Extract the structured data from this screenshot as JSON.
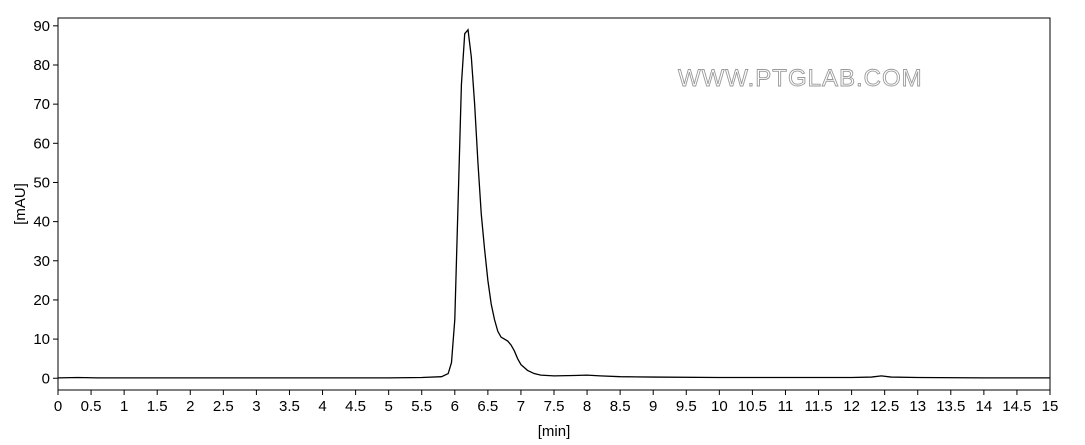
{
  "watermark": "WWW.PTGLAB.COM",
  "chart_data": {
    "type": "line",
    "xlabel": "[min]",
    "ylabel": "[mAU]",
    "xlim": [
      0,
      15
    ],
    "ylim": [
      -3,
      92
    ],
    "x_ticks": [
      0,
      0.5,
      1,
      1.5,
      2,
      2.5,
      3,
      3.5,
      4,
      4.5,
      5,
      5.5,
      6,
      6.5,
      7,
      7.5,
      8,
      8.5,
      9,
      9.5,
      10,
      10.5,
      11,
      11.5,
      12,
      12.5,
      13,
      13.5,
      14,
      14.5,
      15
    ],
    "y_ticks": [
      0,
      10,
      20,
      30,
      40,
      50,
      60,
      70,
      80,
      90
    ],
    "grid": false,
    "line_color": "#000000",
    "series": [
      {
        "x": [
          0,
          0.3,
          0.6,
          1,
          2,
          3,
          4,
          5,
          5.5,
          5.8,
          5.9,
          5.95,
          6.0,
          6.05,
          6.1,
          6.15,
          6.2,
          6.25,
          6.3,
          6.35,
          6.4,
          6.45,
          6.5,
          6.55,
          6.6,
          6.65,
          6.7,
          6.75,
          6.8,
          6.85,
          6.9,
          6.95,
          7.0,
          7.1,
          7.2,
          7.3,
          7.5,
          7.8,
          8.0,
          8.2,
          8.5,
          9,
          10,
          11,
          12,
          12.3,
          12.45,
          12.6,
          13,
          14,
          15
        ],
        "y": [
          0.1,
          0.2,
          0.1,
          0.1,
          0.1,
          0.1,
          0.1,
          0.1,
          0.2,
          0.4,
          1.2,
          4,
          15,
          45,
          75,
          88,
          89,
          82,
          70,
          55,
          42,
          33,
          25,
          19,
          15,
          12,
          10.5,
          10,
          9.5,
          8.5,
          7,
          5,
          3.5,
          2,
          1.2,
          0.8,
          0.6,
          0.7,
          0.8,
          0.6,
          0.4,
          0.3,
          0.2,
          0.2,
          0.2,
          0.3,
          0.6,
          0.3,
          0.2,
          0.1,
          0.1
        ]
      }
    ]
  }
}
